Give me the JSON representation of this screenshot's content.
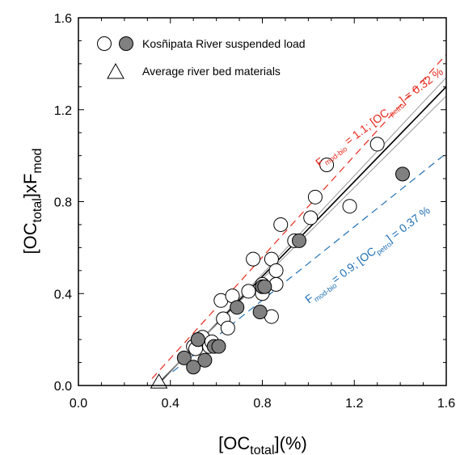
{
  "chart_data": {
    "type": "scatter",
    "xlabel": {
      "main": "[OC",
      "sub": "total",
      "tail": "](%)"
    },
    "ylabel": {
      "main": "[OC",
      "sub": "total",
      "mid": "]xF",
      "sub2": "mod"
    },
    "xlim": [
      0.0,
      1.6
    ],
    "ylim": [
      0.0,
      1.6
    ],
    "xticks": [
      "0.0",
      "0.4",
      "0.8",
      "1.2",
      "1.6"
    ],
    "yticks": [
      "0.0",
      "0.4",
      "0.8",
      "1.2",
      "1.6"
    ],
    "grid": false,
    "legend": {
      "placement": "top-left",
      "entries": [
        {
          "label": "Kosñipata River suspended load",
          "symbol": "circles-open-filled"
        },
        {
          "label": "Average river bed materials",
          "symbol": "triangle-open"
        }
      ]
    },
    "series": [
      {
        "name": "Kosñipata River suspended load",
        "open_points": [
          [
            0.5,
            0.17
          ],
          [
            0.51,
            0.16
          ],
          [
            0.52,
            0.2
          ],
          [
            0.54,
            0.21
          ],
          [
            0.57,
            0.17
          ],
          [
            0.58,
            0.19
          ],
          [
            0.62,
            0.37
          ],
          [
            0.63,
            0.29
          ],
          [
            0.65,
            0.25
          ],
          [
            0.67,
            0.39
          ],
          [
            0.74,
            0.41
          ],
          [
            0.76,
            0.55
          ],
          [
            0.8,
            0.4
          ],
          [
            0.8,
            0.44
          ],
          [
            0.84,
            0.3
          ],
          [
            0.84,
            0.55
          ],
          [
            0.86,
            0.5
          ],
          [
            0.86,
            0.44
          ],
          [
            0.88,
            0.7
          ],
          [
            0.94,
            0.63
          ],
          [
            1.01,
            0.73
          ],
          [
            1.03,
            0.82
          ],
          [
            1.08,
            0.96
          ],
          [
            1.18,
            0.78
          ],
          [
            1.3,
            1.05
          ]
        ],
        "filled_points": [
          [
            0.46,
            0.12
          ],
          [
            0.5,
            0.08
          ],
          [
            0.52,
            0.2
          ],
          [
            0.55,
            0.11
          ],
          [
            0.59,
            0.17
          ],
          [
            0.61,
            0.17
          ],
          [
            0.69,
            0.34
          ],
          [
            0.79,
            0.32
          ],
          [
            0.8,
            0.43
          ],
          [
            0.81,
            0.43
          ],
          [
            0.96,
            0.63
          ],
          [
            1.41,
            0.92
          ]
        ],
        "filled_color": "#808080"
      },
      {
        "name": "Average river bed materials",
        "points": [
          [
            0.35,
            0.01
          ]
        ]
      }
    ],
    "lines": [
      {
        "kind": "regression",
        "x1": 0.35,
        "y1": 0.01,
        "x2": 1.6,
        "y2": 1.3,
        "color": "#000000",
        "style": "solid"
      },
      {
        "kind": "confidence",
        "x1": 0.355,
        "y1": 0.01,
        "x2": 1.6,
        "y2": 1.34,
        "color": "#999999",
        "style": "solid"
      },
      {
        "kind": "confidence",
        "x1": 0.345,
        "y1": 0.01,
        "x2": 1.6,
        "y2": 1.26,
        "color": "#999999",
        "style": "solid"
      },
      {
        "kind": "model",
        "x1": 0.32,
        "y1": 0.03,
        "x2": 1.6,
        "y2": 1.44,
        "color": "#e8291c",
        "style": "dashed",
        "label": {
          "a": "F",
          "a_sub": "mod-bio",
          "b": " = 1.1; [OC",
          "b_sub": "petro",
          "c": "] = 0.32 %"
        }
      },
      {
        "kind": "model",
        "x1": 0.41,
        "y1": 0.06,
        "x2": 1.6,
        "y2": 1.01,
        "color": "#1f6fb4",
        "style": "dashed",
        "label": {
          "a": "F",
          "a_sub": "mod-bio",
          "b": "= 0.9; [OC",
          "b_sub": "petro",
          "c": "] = 0.37 %"
        }
      }
    ]
  }
}
